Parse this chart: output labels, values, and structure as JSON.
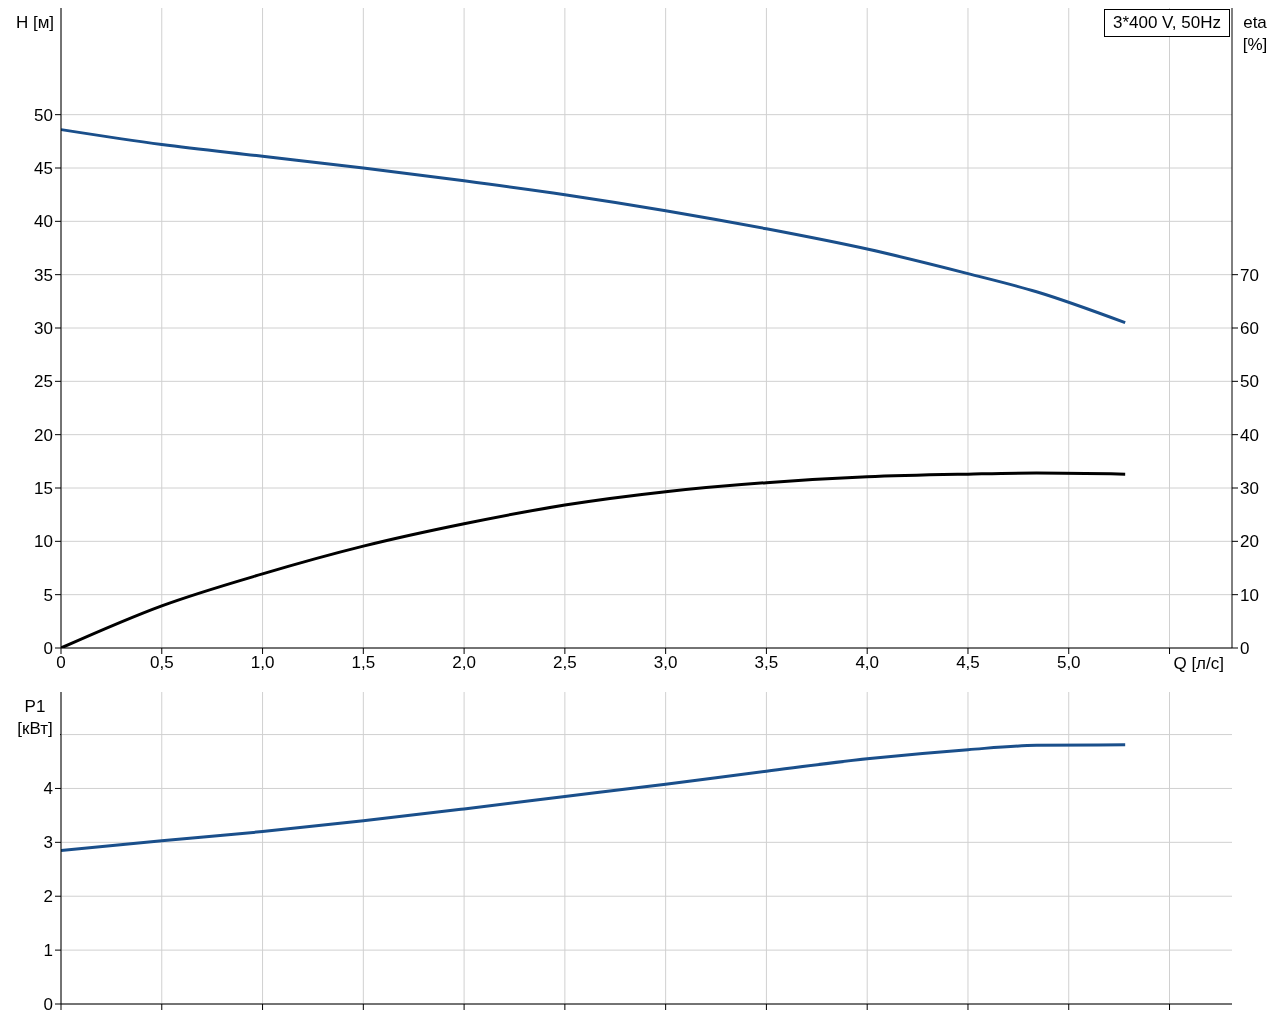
{
  "chart_data": [
    {
      "type": "line",
      "ylabel": "H [м]",
      "y2label": "eta [%]",
      "xlabel": "Q [л/с]",
      "annotations": [
        "3*400 V, 50Hz"
      ],
      "x": [
        0,
        0.5,
        1.0,
        1.5,
        2.0,
        2.5,
        3.0,
        3.5,
        4.0,
        4.5,
        4.84,
        5.28
      ],
      "series": [
        {
          "color": "#1a4f8b",
          "values": [
            48.6,
            47.2,
            46.1,
            45.0,
            43.8,
            42.5,
            41.0,
            39.3,
            37.4,
            35.1,
            33.4,
            30.5
          ]
        },
        {
          "color": "#000000",
          "axis": "y2",
          "values": [
            0,
            7.9,
            13.9,
            19.1,
            23.3,
            26.8,
            29.3,
            31.0,
            32.1,
            32.6,
            32.8,
            32.6
          ]
        }
      ],
      "xlim": [
        0,
        5.81
      ],
      "xticks": [
        0,
        {
          "value": 0.5,
          "label": "0,5"
        },
        {
          "value": 1,
          "label": "1,0"
        },
        {
          "value": 1.5,
          "label": "1,5"
        },
        {
          "value": 2,
          "label": "2,0"
        },
        {
          "value": 2.5,
          "label": "2,5"
        },
        {
          "value": 3,
          "label": "3,0"
        },
        {
          "value": 3.5,
          "label": "3,5"
        },
        {
          "value": 4,
          "label": "4,0"
        },
        {
          "value": 4.5,
          "label": "4,5"
        },
        {
          "value": 5,
          "label": "5,0"
        },
        {
          "value": 5.5,
          "label": null
        }
      ],
      "ylim": [
        0,
        60
      ],
      "yticks": [
        0,
        5,
        10,
        15,
        20,
        25,
        30,
        35,
        40,
        45,
        50
      ],
      "y2lim": [
        0,
        120
      ],
      "y2ticks": [
        0,
        10,
        20,
        30,
        40,
        50,
        60,
        70
      ],
      "grid": true,
      "legend": false,
      "line_style": "solid",
      "marker": "none"
    },
    {
      "type": "line",
      "ylabel": "P1 [кВт]",
      "x": [
        0,
        0.5,
        1.0,
        1.5,
        2.0,
        2.5,
        3.0,
        3.5,
        4.0,
        4.5,
        4.84,
        5.28
      ],
      "series": [
        {
          "color": "#1a4f8b",
          "values": [
            2.85,
            3.03,
            3.2,
            3.4,
            3.62,
            3.85,
            4.08,
            4.32,
            4.55,
            4.72,
            4.8,
            4.81
          ]
        }
      ],
      "xlim": [
        0,
        5.81
      ],
      "xticks": [
        0,
        0.5,
        1,
        1.5,
        2,
        2.5,
        3,
        3.5,
        4,
        4.5,
        5,
        5.5
      ],
      "ylim": [
        0,
        5.79
      ],
      "yticks": [
        0,
        1,
        2,
        3,
        4,
        {
          "value": 5,
          "label": null
        }
      ],
      "tick_labels": "y",
      "grid": true,
      "legend": false,
      "line_style": "solid",
      "marker": "none"
    }
  ]
}
